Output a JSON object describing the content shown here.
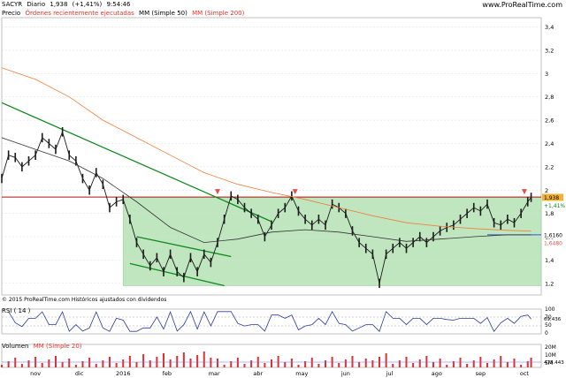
{
  "header": {
    "symbol": "SACYR",
    "period": "Diario",
    "last": "1,938",
    "change": "(+1,41%)",
    "time": "9:54:46",
    "watermark": "www.ProRealTime.com"
  },
  "legend": {
    "price": "Precio",
    "orders": "Órdenes recientemente ejecutadas",
    "mm50": "MM (Simple 50)",
    "mm200": "MM (Simple 200)"
  },
  "footer_note": "© 2015 ProRealTime.com Históricos ajustados con dividendos",
  "rsi": {
    "label": "RSI ( 14 )",
    "value_label": "69,436",
    "ticks": [
      "100",
      "70",
      "50",
      "0"
    ]
  },
  "volume": {
    "label": "Volumen",
    "ma_label": "MM (Simple 20)",
    "value_label": "478.443",
    "ticks": [
      "20M",
      "10M",
      "5M"
    ]
  },
  "price_badges": {
    "last": "1,938",
    "change": "+1,41%",
    "mm50": "1,6160",
    "mm200": "1,6480"
  },
  "colors": {
    "price": "#1a1a1a",
    "mm50": "#333333",
    "mm200": "#f07f3c",
    "channel": "#0f8a1f",
    "zone": "#bfe6bf",
    "resistance": "#b01010",
    "arrow": "#e05050",
    "rsi_line": "#2a3a9a",
    "volume_bar": "#e03030",
    "volume_ma": "#6a6aff",
    "support": "#2b59d8"
  },
  "chart_data": {
    "type": "line",
    "title": "SACYR Diario",
    "ylim": [
      1.1,
      3.48
    ],
    "yticks": [
      1.2,
      1.4,
      1.6,
      1.8,
      2,
      2.2,
      2.4,
      2.6,
      2.8,
      3,
      3.2,
      3.4
    ],
    "xtick_labels": [
      "nov",
      "dic",
      "2016",
      "feb",
      "mar",
      "abr",
      "may",
      "jun",
      "jul",
      "ago",
      "sep",
      "oct"
    ],
    "x_range": [
      0,
      160
    ],
    "xtick_pos": [
      10,
      23,
      36,
      49,
      63,
      76,
      89,
      102,
      115,
      129,
      142,
      155
    ],
    "series": [
      {
        "name": "Precio",
        "kind": "price",
        "values": [
          [
            0,
            2.1
          ],
          [
            2,
            2.3
          ],
          [
            4,
            2.28
          ],
          [
            6,
            2.2
          ],
          [
            8,
            2.25
          ],
          [
            10,
            2.3
          ],
          [
            12,
            2.45
          ],
          [
            14,
            2.4
          ],
          [
            16,
            2.35
          ],
          [
            18,
            2.5
          ],
          [
            20,
            2.3
          ],
          [
            22,
            2.25
          ],
          [
            24,
            2.1
          ],
          [
            26,
            2.0
          ],
          [
            28,
            2.15
          ],
          [
            30,
            2.05
          ],
          [
            32,
            1.85
          ],
          [
            34,
            1.9
          ],
          [
            36,
            1.92
          ],
          [
            38,
            1.75
          ],
          [
            40,
            1.55
          ],
          [
            42,
            1.45
          ],
          [
            44,
            1.35
          ],
          [
            46,
            1.42
          ],
          [
            48,
            1.3
          ],
          [
            50,
            1.45
          ],
          [
            52,
            1.3
          ],
          [
            54,
            1.25
          ],
          [
            56,
            1.42
          ],
          [
            58,
            1.3
          ],
          [
            60,
            1.45
          ],
          [
            62,
            1.38
          ],
          [
            64,
            1.55
          ],
          [
            66,
            1.75
          ],
          [
            68,
            1.95
          ],
          [
            70,
            1.92
          ],
          [
            72,
            1.85
          ],
          [
            74,
            1.8
          ],
          [
            76,
            1.75
          ],
          [
            78,
            1.6
          ],
          [
            80,
            1.7
          ],
          [
            82,
            1.8
          ],
          [
            84,
            1.85
          ],
          [
            86,
            1.95
          ],
          [
            88,
            1.82
          ],
          [
            90,
            1.75
          ],
          [
            92,
            1.7
          ],
          [
            94,
            1.75
          ],
          [
            96,
            1.7
          ],
          [
            98,
            1.88
          ],
          [
            100,
            1.85
          ],
          [
            102,
            1.8
          ],
          [
            104,
            1.65
          ],
          [
            106,
            1.55
          ],
          [
            108,
            1.5
          ],
          [
            110,
            1.45
          ],
          [
            112,
            1.2
          ],
          [
            114,
            1.45
          ],
          [
            116,
            1.5
          ],
          [
            118,
            1.55
          ],
          [
            120,
            1.5
          ],
          [
            122,
            1.55
          ],
          [
            124,
            1.6
          ],
          [
            126,
            1.55
          ],
          [
            128,
            1.6
          ],
          [
            130,
            1.65
          ],
          [
            132,
            1.68
          ],
          [
            134,
            1.7
          ],
          [
            136,
            1.75
          ],
          [
            138,
            1.8
          ],
          [
            140,
            1.85
          ],
          [
            142,
            1.82
          ],
          [
            144,
            1.88
          ],
          [
            146,
            1.72
          ],
          [
            148,
            1.7
          ],
          [
            150,
            1.75
          ],
          [
            152,
            1.72
          ],
          [
            154,
            1.8
          ],
          [
            156,
            1.9
          ],
          [
            157,
            1.938
          ]
        ]
      },
      {
        "name": "MM (Simple 50)",
        "kind": "mm50",
        "values": [
          [
            0,
            2.45
          ],
          [
            10,
            2.35
          ],
          [
            20,
            2.25
          ],
          [
            30,
            2.1
          ],
          [
            40,
            1.9
          ],
          [
            50,
            1.68
          ],
          [
            60,
            1.55
          ],
          [
            70,
            1.58
          ],
          [
            80,
            1.64
          ],
          [
            90,
            1.66
          ],
          [
            100,
            1.64
          ],
          [
            110,
            1.6
          ],
          [
            120,
            1.56
          ],
          [
            130,
            1.58
          ],
          [
            140,
            1.6
          ],
          [
            150,
            1.616
          ],
          [
            157,
            1.616
          ]
        ]
      },
      {
        "name": "MM (Simple 200)",
        "kind": "mm200",
        "values": [
          [
            0,
            3.05
          ],
          [
            10,
            2.95
          ],
          [
            20,
            2.8
          ],
          [
            30,
            2.6
          ],
          [
            40,
            2.45
          ],
          [
            50,
            2.3
          ],
          [
            60,
            2.15
          ],
          [
            70,
            2.05
          ],
          [
            80,
            1.98
          ],
          [
            90,
            1.92
          ],
          [
            100,
            1.85
          ],
          [
            110,
            1.78
          ],
          [
            120,
            1.72
          ],
          [
            130,
            1.69
          ],
          [
            140,
            1.67
          ],
          [
            150,
            1.655
          ],
          [
            157,
            1.648
          ]
        ]
      }
    ],
    "annotations": [
      {
        "kind": "trendline",
        "from": [
          0,
          2.75
        ],
        "to": [
          80,
          1.73
        ]
      },
      {
        "kind": "trendline",
        "from": [
          40,
          1.6
        ],
        "to": [
          68,
          1.43
        ]
      },
      {
        "kind": "trendline",
        "from": [
          38,
          1.37
        ],
        "to": [
          66,
          1.18
        ]
      },
      {
        "kind": "hline",
        "y": 1.94
      },
      {
        "kind": "hline_short",
        "y": 1.616,
        "from": 144,
        "to": 160
      },
      {
        "kind": "zone",
        "x_from": 36,
        "x_to": 160,
        "y_from": 1.18,
        "y_to": 1.94
      },
      {
        "kind": "arrow",
        "x": 64,
        "y": 1.94
      },
      {
        "kind": "arrow",
        "x": 87,
        "y": 1.94
      },
      {
        "kind": "arrow",
        "x": 155,
        "y": 1.94
      }
    ]
  }
}
